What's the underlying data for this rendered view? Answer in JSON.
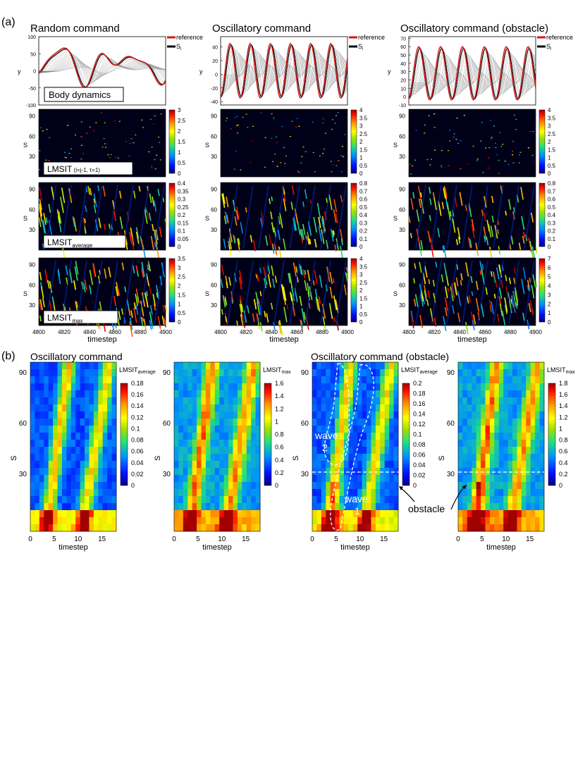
{
  "panel_labels": {
    "a": "(a)",
    "b": "(b)"
  },
  "column_titles": [
    "Random command",
    "Oscillatory command",
    "Oscillatory command (obstacle)"
  ],
  "legend": {
    "reference": "reference",
    "si_main": "S",
    "si_sub": "i"
  },
  "y_label": "y",
  "s_label": "S",
  "x_label": "timestep",
  "row_labels": {
    "body": "Body dynamics",
    "lmsit1_main": "LMSIT",
    "lmsit1_sub": " (i=j-1, τ=1)",
    "avg_main": "LMSIT",
    "avg_sub": "average",
    "max_main": "LMSIT",
    "max_sub": "max"
  },
  "b_titles": [
    "Oscillatory command",
    "Oscillatory command (obstacle)"
  ],
  "b_colorbar_labels": {
    "avg_main": "LMSIT",
    "avg_sub": "average",
    "max_main": "LMSIT",
    "max_sub": "max"
  },
  "annotations": {
    "wave": "wave",
    "wave1_num": "1",
    "wave2_num": "2",
    "obstacle": "obstacle"
  },
  "colors": {
    "reference": "#e01010",
    "si": "#000000",
    "cmap": [
      "#000090",
      "#0020ff",
      "#00a0ff",
      "#30e070",
      "#b0e000",
      "#ffff00",
      "#ffa000",
      "#ff2000",
      "#a00000"
    ]
  },
  "chart_data": [
    {
      "type": "line",
      "panel": "a-body-random",
      "ylim": [
        -100,
        100
      ],
      "yticks": [
        "100",
        "50",
        "0",
        "-50",
        "-100"
      ],
      "series": [
        {
          "name": "reference"
        },
        {
          "name": "Si"
        }
      ]
    },
    {
      "type": "line",
      "panel": "a-body-osc",
      "ylim": [
        -45,
        55
      ],
      "yticks": [
        "40",
        "20",
        "0",
        "-20",
        "-40"
      ],
      "series": [
        {
          "name": "reference"
        },
        {
          "name": "Si"
        }
      ]
    },
    {
      "type": "line",
      "panel": "a-body-obst",
      "ylim": [
        -10,
        72
      ],
      "yticks": [
        "70",
        "60",
        "50",
        "40",
        "30",
        "20",
        "10",
        "0",
        "-10"
      ],
      "series": [
        {
          "name": "reference"
        },
        {
          "name": "Si"
        }
      ]
    },
    {
      "type": "heatmap",
      "panel": "a-heatmaps",
      "xlim": [
        4800,
        4900
      ],
      "xticks": [
        "4800",
        "4820",
        "4840",
        "4860",
        "4880",
        "4900"
      ],
      "yticks": [
        "90",
        "60",
        "30"
      ],
      "colorbars": [
        [
          "3",
          "2.5",
          "2",
          "1.5",
          "1",
          "0.5",
          "0"
        ],
        [
          "4",
          "3.5",
          "3",
          "2.5",
          "2",
          "1.5",
          "1",
          "0.5",
          "0"
        ],
        [
          "4",
          "3.5",
          "3",
          "2.5",
          "2",
          "1.5",
          "1",
          "0.5",
          "0"
        ],
        [
          "0.4",
          "0.35",
          "0.3",
          "0.25",
          "0.2",
          "0.15",
          "0.1",
          "0.05",
          "0"
        ],
        [
          "0.8",
          "0.7",
          "0.6",
          "0.5",
          "0.4",
          "0.3",
          "0.2",
          "0.1",
          "0"
        ],
        [
          "0.8",
          "0.7",
          "0.6",
          "0.5",
          "0.4",
          "0.3",
          "0.2",
          "0.1",
          "0"
        ],
        [
          "3.5",
          "3",
          "2.5",
          "2",
          "1.5",
          "1",
          "0.5",
          "0"
        ],
        [
          "4",
          "3.5",
          "3",
          "2.5",
          "2",
          "1.5",
          "1",
          "0.5",
          "0"
        ],
        [
          "7",
          "6",
          "5",
          "4",
          "3",
          "2",
          "1",
          "0"
        ]
      ]
    },
    {
      "type": "heatmap",
      "panel": "b-heatmaps",
      "xticks": [
        "0",
        "5",
        "10",
        "15"
      ],
      "yticks": [
        "90",
        "60",
        "30"
      ],
      "colorbars": [
        [
          "0.18",
          "0.16",
          "0.14",
          "0.12",
          "0.1",
          "0.08",
          "0.06",
          "0.04",
          "0.02",
          "0"
        ],
        [
          "1.6",
          "1.4",
          "1.2",
          "1",
          "0.8",
          "0.6",
          "0.4",
          "0.2",
          "0"
        ],
        [
          "0.2",
          "0.18",
          "0.16",
          "0.14",
          "0.12",
          "0.1",
          "0.08",
          "0.06",
          "0.04",
          "0.02",
          "0"
        ],
        [
          "1.8",
          "1.6",
          "1.4",
          "1.2",
          "1",
          "0.8",
          "0.6",
          "0.4",
          "0.2",
          "0"
        ]
      ],
      "obstacle_s": 30
    }
  ]
}
